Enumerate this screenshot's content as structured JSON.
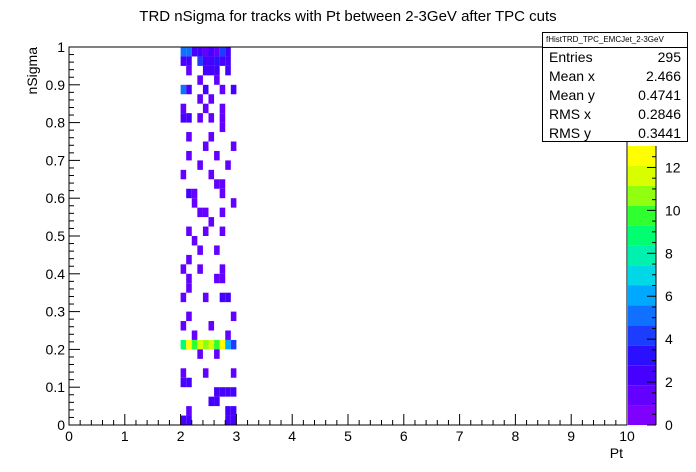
{
  "chart_data": {
    "type": "heatmap",
    "title": "TRD nSigma for tracks with Pt between 2-3GeV after TPC cuts",
    "xlabel": "Pt",
    "ylabel": "nSigma",
    "xlim": [
      0,
      10
    ],
    "ylim": [
      0,
      1
    ],
    "xticks": [
      "0",
      "1",
      "2",
      "3",
      "4",
      "5",
      "6",
      "7",
      "8",
      "9",
      "10"
    ],
    "yticks": [
      "0",
      "0.1",
      "0.2",
      "0.3",
      "0.4",
      "0.5",
      "0.6",
      "0.7",
      "0.8",
      "0.9",
      "1"
    ],
    "zlim": [
      0,
      13
    ],
    "zticks": [
      "0",
      "2",
      "4",
      "6",
      "8",
      "10",
      "12"
    ],
    "bin_width_x": 0.1,
    "bin_width_y": 0.025,
    "bins": [
      {
        "x": 2.0,
        "y": 0.975,
        "z": 5
      },
      {
        "x": 2.1,
        "y": 0.975,
        "z": 5
      },
      {
        "x": 2.2,
        "y": 0.975,
        "z": 2
      },
      {
        "x": 2.3,
        "y": 0.975,
        "z": 2
      },
      {
        "x": 2.4,
        "y": 0.975,
        "z": 1
      },
      {
        "x": 2.5,
        "y": 0.975,
        "z": 2
      },
      {
        "x": 2.6,
        "y": 0.975,
        "z": 1
      },
      {
        "x": 2.7,
        "y": 0.975,
        "z": 4
      },
      {
        "x": 2.8,
        "y": 0.975,
        "z": 2
      },
      {
        "x": 2.0,
        "y": 0.95,
        "z": 2
      },
      {
        "x": 2.1,
        "y": 0.95,
        "z": 2
      },
      {
        "x": 2.3,
        "y": 0.95,
        "z": 4
      },
      {
        "x": 2.4,
        "y": 0.95,
        "z": 2
      },
      {
        "x": 2.5,
        "y": 0.95,
        "z": 2
      },
      {
        "x": 2.6,
        "y": 0.95,
        "z": 3
      },
      {
        "x": 2.7,
        "y": 0.95,
        "z": 2
      },
      {
        "x": 2.8,
        "y": 0.95,
        "z": 2
      },
      {
        "x": 2.1,
        "y": 0.925,
        "z": 1
      },
      {
        "x": 2.4,
        "y": 0.925,
        "z": 2
      },
      {
        "x": 2.5,
        "y": 0.925,
        "z": 2
      },
      {
        "x": 2.6,
        "y": 0.925,
        "z": 2
      },
      {
        "x": 2.8,
        "y": 0.925,
        "z": 2
      },
      {
        "x": 2.3,
        "y": 0.9,
        "z": 1
      },
      {
        "x": 2.6,
        "y": 0.9,
        "z": 1
      },
      {
        "x": 2.0,
        "y": 0.875,
        "z": 5
      },
      {
        "x": 2.1,
        "y": 0.875,
        "z": 2
      },
      {
        "x": 2.4,
        "y": 0.875,
        "z": 2
      },
      {
        "x": 2.7,
        "y": 0.875,
        "z": 1
      },
      {
        "x": 2.9,
        "y": 0.875,
        "z": 2
      },
      {
        "x": 2.3,
        "y": 0.85,
        "z": 1
      },
      {
        "x": 2.5,
        "y": 0.85,
        "z": 1
      },
      {
        "x": 2.0,
        "y": 0.825,
        "z": 1
      },
      {
        "x": 2.4,
        "y": 0.825,
        "z": 1
      },
      {
        "x": 2.7,
        "y": 0.825,
        "z": 1
      },
      {
        "x": 2.0,
        "y": 0.8,
        "z": 2
      },
      {
        "x": 2.1,
        "y": 0.8,
        "z": 2
      },
      {
        "x": 2.3,
        "y": 0.8,
        "z": 1
      },
      {
        "x": 2.5,
        "y": 0.8,
        "z": 1
      },
      {
        "x": 2.7,
        "y": 0.8,
        "z": 1
      },
      {
        "x": 2.7,
        "y": 0.775,
        "z": 1
      },
      {
        "x": 2.1,
        "y": 0.75,
        "z": 1
      },
      {
        "x": 2.5,
        "y": 0.75,
        "z": 1
      },
      {
        "x": 2.4,
        "y": 0.725,
        "z": 1
      },
      {
        "x": 2.9,
        "y": 0.725,
        "z": 1
      },
      {
        "x": 2.1,
        "y": 0.7,
        "z": 1
      },
      {
        "x": 2.6,
        "y": 0.7,
        "z": 1
      },
      {
        "x": 2.3,
        "y": 0.675,
        "z": 1
      },
      {
        "x": 2.8,
        "y": 0.675,
        "z": 1
      },
      {
        "x": 2.0,
        "y": 0.65,
        "z": 1
      },
      {
        "x": 2.5,
        "y": 0.65,
        "z": 1
      },
      {
        "x": 2.6,
        "y": 0.625,
        "z": 1
      },
      {
        "x": 2.7,
        "y": 0.625,
        "z": 1
      },
      {
        "x": 2.1,
        "y": 0.6,
        "z": 2
      },
      {
        "x": 2.2,
        "y": 0.6,
        "z": 1
      },
      {
        "x": 2.7,
        "y": 0.6,
        "z": 1
      },
      {
        "x": 2.2,
        "y": 0.575,
        "z": 1
      },
      {
        "x": 2.9,
        "y": 0.575,
        "z": 1
      },
      {
        "x": 2.3,
        "y": 0.55,
        "z": 1
      },
      {
        "x": 2.4,
        "y": 0.55,
        "z": 1
      },
      {
        "x": 2.7,
        "y": 0.55,
        "z": 1
      },
      {
        "x": 2.5,
        "y": 0.525,
        "z": 1
      },
      {
        "x": 2.1,
        "y": 0.5,
        "z": 1
      },
      {
        "x": 2.4,
        "y": 0.5,
        "z": 1
      },
      {
        "x": 2.7,
        "y": 0.5,
        "z": 1
      },
      {
        "x": 2.2,
        "y": 0.475,
        "z": 1
      },
      {
        "x": 2.3,
        "y": 0.45,
        "z": 1
      },
      {
        "x": 2.6,
        "y": 0.45,
        "z": 1
      },
      {
        "x": 2.1,
        "y": 0.425,
        "z": 1
      },
      {
        "x": 2.0,
        "y": 0.4,
        "z": 1
      },
      {
        "x": 2.3,
        "y": 0.4,
        "z": 1
      },
      {
        "x": 2.7,
        "y": 0.4,
        "z": 1
      },
      {
        "x": 2.1,
        "y": 0.375,
        "z": 1
      },
      {
        "x": 2.6,
        "y": 0.375,
        "z": 1
      },
      {
        "x": 2.7,
        "y": 0.375,
        "z": 1
      },
      {
        "x": 2.1,
        "y": 0.35,
        "z": 1
      },
      {
        "x": 2.0,
        "y": 0.325,
        "z": 1
      },
      {
        "x": 2.4,
        "y": 0.325,
        "z": 1
      },
      {
        "x": 2.7,
        "y": 0.325,
        "z": 2
      },
      {
        "x": 2.8,
        "y": 0.325,
        "z": 2
      },
      {
        "x": 2.1,
        "y": 0.275,
        "z": 1
      },
      {
        "x": 2.9,
        "y": 0.275,
        "z": 1
      },
      {
        "x": 2.0,
        "y": 0.25,
        "z": 1
      },
      {
        "x": 2.5,
        "y": 0.25,
        "z": 1
      },
      {
        "x": 2.2,
        "y": 0.225,
        "z": 1
      },
      {
        "x": 2.8,
        "y": 0.225,
        "z": 1
      },
      {
        "x": 2.0,
        "y": 0.2,
        "z": 9
      },
      {
        "x": 2.1,
        "y": 0.2,
        "z": 13
      },
      {
        "x": 2.2,
        "y": 0.2,
        "z": 10
      },
      {
        "x": 2.3,
        "y": 0.2,
        "z": 12
      },
      {
        "x": 2.4,
        "y": 0.2,
        "z": 11
      },
      {
        "x": 2.5,
        "y": 0.2,
        "z": 12
      },
      {
        "x": 2.6,
        "y": 0.2,
        "z": 10
      },
      {
        "x": 2.7,
        "y": 0.2,
        "z": 13
      },
      {
        "x": 2.8,
        "y": 0.2,
        "z": 6
      },
      {
        "x": 2.9,
        "y": 0.2,
        "z": 4
      },
      {
        "x": 2.3,
        "y": 0.175,
        "z": 1
      },
      {
        "x": 2.6,
        "y": 0.175,
        "z": 1
      },
      {
        "x": 2.0,
        "y": 0.125,
        "z": 1
      },
      {
        "x": 2.4,
        "y": 0.125,
        "z": 1
      },
      {
        "x": 2.9,
        "y": 0.125,
        "z": 1
      },
      {
        "x": 2.0,
        "y": 0.1,
        "z": 2
      },
      {
        "x": 2.1,
        "y": 0.1,
        "z": 2
      },
      {
        "x": 2.6,
        "y": 0.075,
        "z": 2
      },
      {
        "x": 2.7,
        "y": 0.075,
        "z": 2
      },
      {
        "x": 2.8,
        "y": 0.075,
        "z": 2
      },
      {
        "x": 2.9,
        "y": 0.075,
        "z": 2
      },
      {
        "x": 2.5,
        "y": 0.05,
        "z": 2
      },
      {
        "x": 2.6,
        "y": 0.05,
        "z": 2
      },
      {
        "x": 2.1,
        "y": 0.025,
        "z": 1
      },
      {
        "x": 2.8,
        "y": 0.025,
        "z": 2
      },
      {
        "x": 2.9,
        "y": 0.025,
        "z": 2
      },
      {
        "x": 2.0,
        "y": 0.0,
        "z": 2
      },
      {
        "x": 2.1,
        "y": 0.0,
        "z": 2
      },
      {
        "x": 2.8,
        "y": 0.0,
        "z": 2
      },
      {
        "x": 2.9,
        "y": 0.0,
        "z": 2
      }
    ],
    "palette": [
      "#7f00ff",
      "#6400ff",
      "#4600ff",
      "#2a10ff",
      "#1c3cff",
      "#1070ff",
      "#00a8ff",
      "#00d8e8",
      "#00f0b0",
      "#00ff70",
      "#30ff30",
      "#90ff10",
      "#d8ff00",
      "#ffff00"
    ]
  },
  "stats_box": {
    "name": "fHistTRD_TPC_EMCJet_2-3GeV",
    "rows": [
      {
        "label": "Entries",
        "value": "295"
      },
      {
        "label": "Mean x",
        "value": "2.466"
      },
      {
        "label": "Mean y",
        "value": "0.4741"
      },
      {
        "label": "RMS x",
        "value": "0.2846"
      },
      {
        "label": "RMS y",
        "value": "0.3441"
      }
    ]
  }
}
